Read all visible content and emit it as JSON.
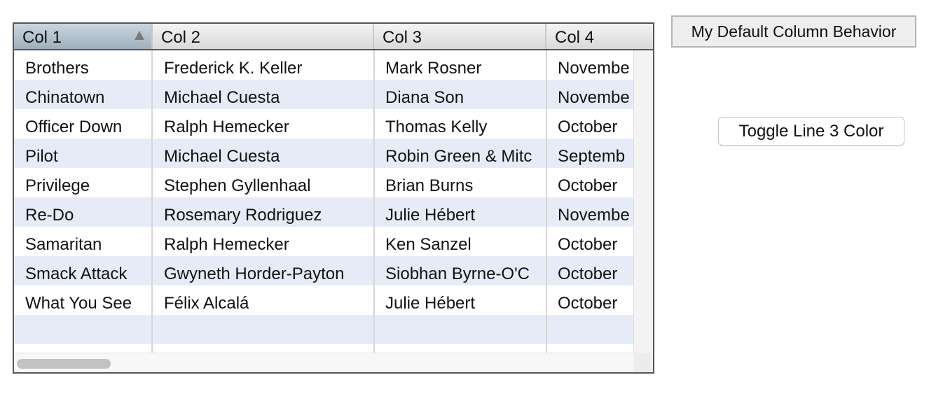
{
  "table": {
    "columns": [
      {
        "label": "Col 1",
        "sorted": "ascending"
      },
      {
        "label": "Col 2"
      },
      {
        "label": "Col 3"
      },
      {
        "label": "Col 4"
      }
    ],
    "rows": [
      [
        "Brothers",
        "Frederick K. Keller",
        "Mark Rosner",
        "Novembe"
      ],
      [
        "Chinatown",
        "Michael Cuesta",
        "Diana Son",
        "Novembe"
      ],
      [
        "Officer Down",
        "Ralph Hemecker",
        "Thomas Kelly",
        "October"
      ],
      [
        "Pilot",
        "Michael Cuesta",
        "Robin Green & Mitc",
        "Septemb"
      ],
      [
        "Privilege",
        "Stephen Gyllenhaal",
        "Brian Burns",
        "October"
      ],
      [
        "Re-Do",
        "Rosemary Rodriguez",
        "Julie Hébert",
        "Novembe"
      ],
      [
        "Samaritan",
        "Ralph Hemecker",
        "Ken Sanzel",
        "October"
      ],
      [
        "Smack Attack",
        "Gwyneth Horder-Payton",
        "Siobhan Byrne-O'C",
        "October"
      ],
      [
        "What You See",
        "Félix Alcalá",
        "Julie Hébert",
        "October"
      ],
      [
        "",
        "",
        "",
        ""
      ]
    ],
    "alt_row_color": "#e6ecf7",
    "sort_icon": "sort-ascending-icon"
  },
  "buttons": {
    "default_column_behavior": "My Default Column Behavior",
    "toggle_line_color": "Toggle Line 3 Color"
  }
}
